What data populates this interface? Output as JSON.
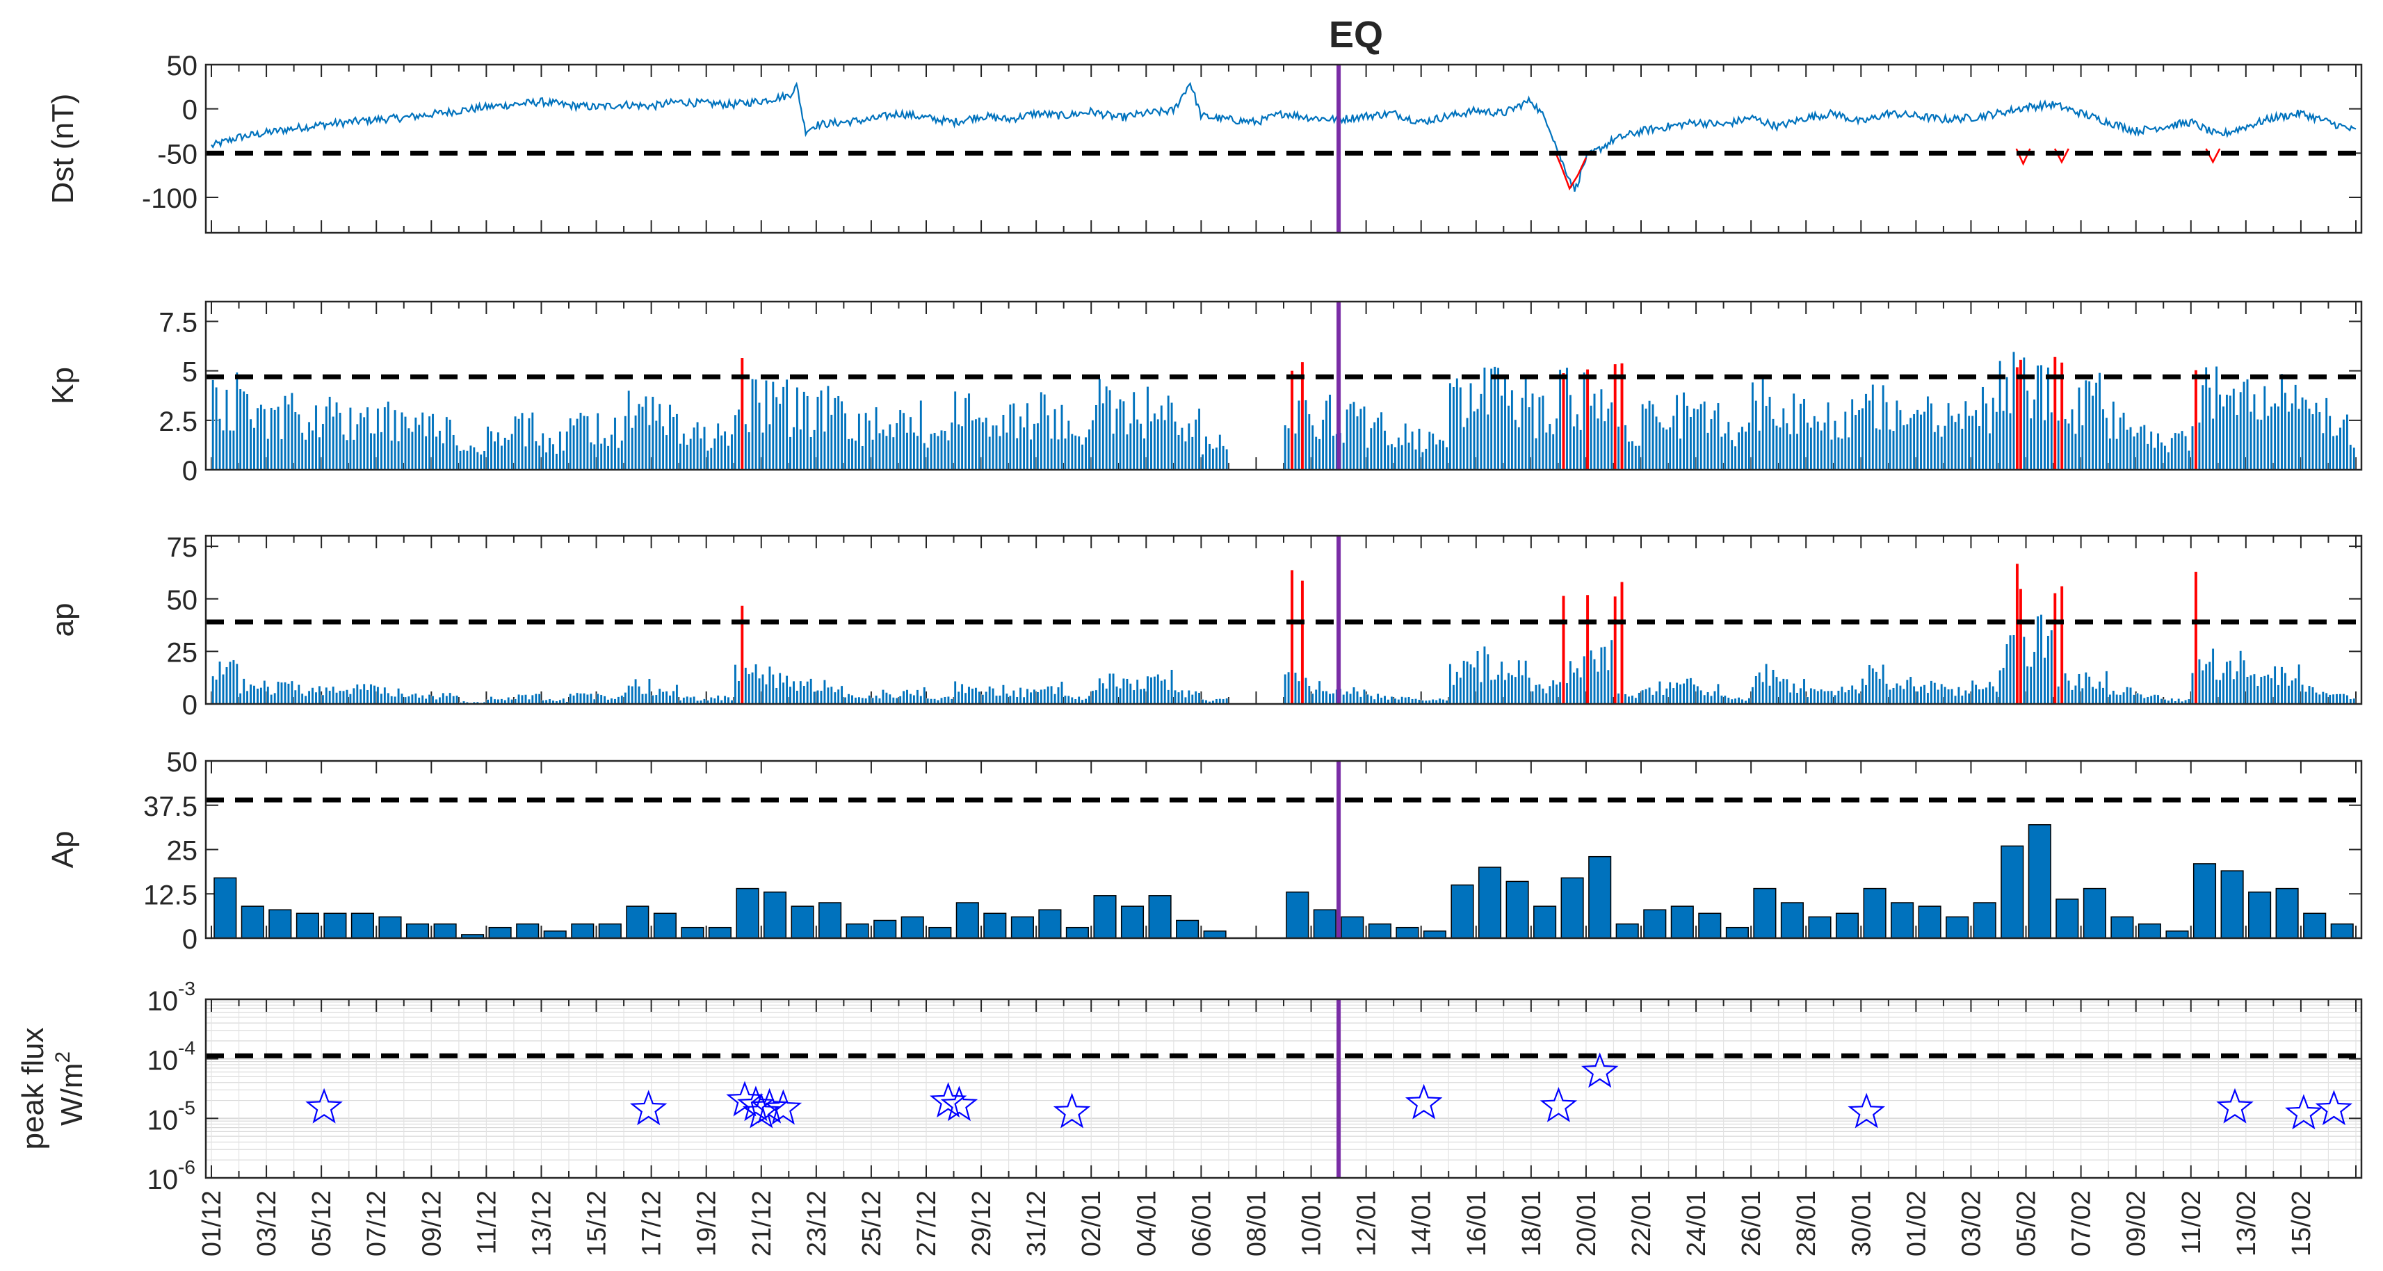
{
  "chart_data": {
    "type": "bar",
    "title": "EQ",
    "event_marker": {
      "label": "EQ",
      "day_index": 41,
      "color": "#7a2da6"
    },
    "x_tick_labels": [
      "01/12",
      "03/12",
      "05/12",
      "07/12",
      "09/12",
      "11/12",
      "13/12",
      "15/12",
      "17/12",
      "19/12",
      "21/12",
      "23/12",
      "25/12",
      "27/12",
      "29/12",
      "31/12",
      "02/01",
      "04/01",
      "06/01",
      "08/01",
      "10/01",
      "12/01",
      "14/01",
      "16/01",
      "18/01",
      "20/01",
      "22/01",
      "24/01",
      "26/01",
      "28/01",
      "30/01",
      "01/02",
      "03/02",
      "05/02",
      "07/02",
      "09/02",
      "11/02",
      "13/02",
      "15/02"
    ],
    "days": 78,
    "panels": [
      {
        "id": "dst",
        "type": "line",
        "ylabel": "Dst (nT)",
        "ylim": [
          -140,
          50
        ],
        "yticks": [
          50,
          0,
          -50,
          -100
        ],
        "threshold": -50,
        "color": "#0072bd",
        "storm_color": "#ff0000",
        "keypoints": [
          [
            0,
            -42
          ],
          [
            1,
            -32
          ],
          [
            2,
            -27
          ],
          [
            3,
            -22
          ],
          [
            4,
            -18
          ],
          [
            5,
            -15
          ],
          [
            6,
            -12
          ],
          [
            7,
            -10
          ],
          [
            8,
            -6
          ],
          [
            9,
            -2
          ],
          [
            10,
            2
          ],
          [
            11,
            5
          ],
          [
            12,
            8
          ],
          [
            13,
            4
          ],
          [
            14,
            2
          ],
          [
            15,
            5
          ],
          [
            16,
            3
          ],
          [
            17,
            8
          ],
          [
            18,
            6
          ],
          [
            19,
            5
          ],
          [
            20,
            9
          ],
          [
            21,
            15
          ],
          [
            21.3,
            26
          ],
          [
            21.6,
            -25
          ],
          [
            22,
            -18
          ],
          [
            23,
            -15
          ],
          [
            24,
            -12
          ],
          [
            25,
            -5
          ],
          [
            26,
            -10
          ],
          [
            27,
            -15
          ],
          [
            28,
            -8
          ],
          [
            29,
            -12
          ],
          [
            30,
            -5
          ],
          [
            31,
            -8
          ],
          [
            32,
            -3
          ],
          [
            33,
            -10
          ],
          [
            34,
            -5
          ],
          [
            35,
            -2
          ],
          [
            35.6,
            30
          ],
          [
            36,
            -8
          ],
          [
            37,
            -12
          ],
          [
            38,
            -15
          ],
          [
            39,
            -5
          ],
          [
            40,
            -10
          ],
          [
            41,
            -12
          ],
          [
            42,
            -8
          ],
          [
            43,
            -5
          ],
          [
            44,
            -15
          ],
          [
            45,
            -8
          ],
          [
            46,
            -2
          ],
          [
            47,
            -5
          ],
          [
            48,
            10
          ],
          [
            48.6,
            -15
          ],
          [
            49.1,
            -58
          ],
          [
            49.6,
            -92
          ],
          [
            50,
            -55
          ],
          [
            50.5,
            -45
          ],
          [
            51,
            -35
          ],
          [
            52,
            -25
          ],
          [
            53,
            -20
          ],
          [
            54,
            -15
          ],
          [
            55,
            -18
          ],
          [
            56,
            -10
          ],
          [
            57,
            -20
          ],
          [
            58,
            -10
          ],
          [
            59,
            -5
          ],
          [
            60,
            -15
          ],
          [
            61,
            -5
          ],
          [
            62,
            -8
          ],
          [
            63,
            -12
          ],
          [
            64,
            -10
          ],
          [
            65,
            -5
          ],
          [
            66,
            2
          ],
          [
            67,
            5
          ],
          [
            68,
            -5
          ],
          [
            69,
            -15
          ],
          [
            70,
            -25
          ],
          [
            71,
            -20
          ],
          [
            72,
            -15
          ],
          [
            73,
            -30
          ],
          [
            74,
            -20
          ],
          [
            75,
            -10
          ],
          [
            76,
            -5
          ],
          [
            77,
            -15
          ],
          [
            78,
            -25
          ],
          [
            78.5,
            -10
          ]
        ],
        "storm_segments": [
          [
            48.9,
            -50
          ],
          [
            49.1,
            -65
          ],
          [
            49.4,
            -90
          ],
          [
            49.7,
            -75
          ],
          [
            50,
            -55
          ]
        ]
      },
      {
        "id": "kp",
        "type": "bar",
        "ylabel": "Kp",
        "ylim": [
          0,
          8.5
        ],
        "yticks": [
          7.5,
          5,
          2.5,
          0
        ],
        "threshold": 4.7,
        "color": "#0072bd",
        "storm_color": "#ff0000"
      },
      {
        "id": "ap",
        "type": "bar",
        "ylabel": "ap",
        "ylim": [
          0,
          80
        ],
        "yticks": [
          75,
          50,
          25,
          0
        ],
        "threshold": 39,
        "color": "#0072bd",
        "storm_color": "#ff0000"
      },
      {
        "id": "Ap",
        "type": "bar",
        "ylabel": "Ap",
        "ylim": [
          0,
          50
        ],
        "yticks": [
          50,
          37.5,
          25,
          12.5,
          0
        ],
        "threshold": 39,
        "color": "#0072bd",
        "values": [
          17,
          9,
          8,
          7,
          7,
          7,
          6,
          4,
          4,
          1,
          3,
          4,
          2,
          4,
          4,
          9,
          7,
          3,
          3,
          14,
          13,
          9,
          10,
          4,
          5,
          6,
          3,
          10,
          7,
          6,
          8,
          3,
          12,
          9,
          12,
          5,
          2,
          0,
          0,
          13,
          8,
          6,
          4,
          3,
          2,
          15,
          20,
          16,
          9,
          17,
          23,
          4,
          8,
          9,
          7,
          3,
          14,
          10,
          6,
          7,
          14,
          10,
          9,
          6,
          10,
          26,
          32,
          11,
          14,
          6,
          4,
          2,
          21,
          19,
          13,
          14,
          7,
          4
        ]
      },
      {
        "id": "flux",
        "type": "scatter",
        "ylabel_line1": "peak flux",
        "ylabel_line2": "W/m",
        "ylabel_sup": "2",
        "ylim_log": [
          -6,
          -3
        ],
        "ytick_base": "10",
        "ytick_exps": [
          "-3",
          "-4",
          "-5",
          "-6"
        ],
        "threshold_log": -3.95,
        "marker_color": "#0000ff",
        "points": [
          [
            4.1,
            -4.82
          ],
          [
            15.9,
            -4.85
          ],
          [
            19.4,
            -4.7
          ],
          [
            19.8,
            -4.78
          ],
          [
            20.0,
            -4.9
          ],
          [
            20.3,
            -4.82
          ],
          [
            20.8,
            -4.84
          ],
          [
            26.8,
            -4.72
          ],
          [
            27.2,
            -4.78
          ],
          [
            31.3,
            -4.9
          ],
          [
            44.1,
            -4.75
          ],
          [
            49.0,
            -4.8
          ],
          [
            50.5,
            -4.22
          ],
          [
            60.2,
            -4.9
          ],
          [
            73.6,
            -4.82
          ],
          [
            76.1,
            -4.92
          ],
          [
            77.2,
            -4.85
          ]
        ]
      }
    ]
  }
}
